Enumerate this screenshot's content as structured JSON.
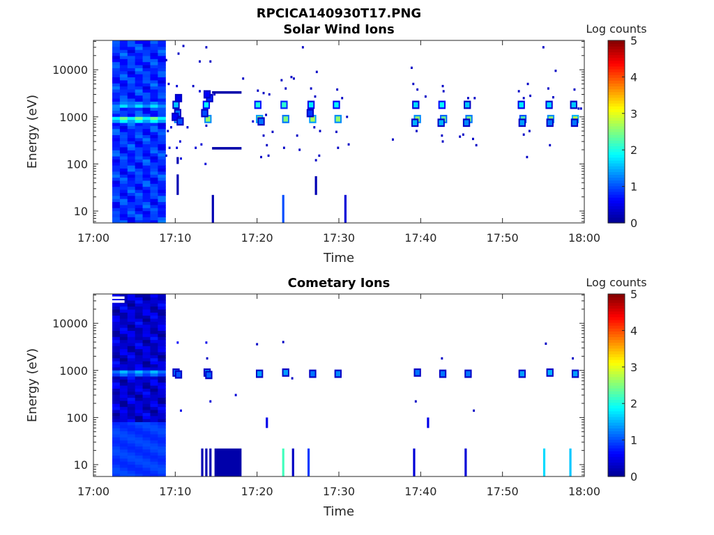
{
  "figure": {
    "title": "RPCICA140930T17.PNG"
  },
  "colormap": {
    "name": "jet",
    "stops": [
      "#00008f",
      "#0000ff",
      "#00ffff",
      "#ffff00",
      "#ff0000",
      "#800000"
    ]
  },
  "chart_data": [
    {
      "type": "heatmap",
      "title": "Solar Wind Ions",
      "xlabel": "Time",
      "ylabel": "Energy (eV)",
      "x_ticks": [
        "17:00",
        "17:10",
        "17:20",
        "17:30",
        "17:40",
        "17:50",
        "18:00"
      ],
      "x_range_minutes": [
        0,
        60
      ],
      "y_scale": "log",
      "y_ticks": [
        "10",
        "100",
        "1000",
        "10000"
      ],
      "y_range_ev": [
        5.6,
        42000
      ],
      "colorbar": {
        "label": "Log counts",
        "ticks": [
          "0",
          "1",
          "2",
          "3",
          "4",
          "5"
        ],
        "range": [
          0,
          5
        ]
      },
      "background_block": {
        "t_start": 2.3,
        "t_end": 8.8,
        "e_min": 5.6,
        "e_max": 42000,
        "base": 0.85,
        "peaks": [
          {
            "e": 900,
            "v": 2.7
          },
          {
            "e": 1800,
            "v": 1.9
          }
        ]
      },
      "cells": [
        {
          "t": 10.1,
          "e": 1800,
          "v": 1.6
        },
        {
          "t": 10.3,
          "e": 900,
          "v": 2.5
        },
        {
          "t": 10.3,
          "e": 1200,
          "v": 1.2
        },
        {
          "t": 10.0,
          "e": 1000,
          "v": 0.6
        },
        {
          "t": 10.6,
          "e": 800,
          "v": 1.0
        },
        {
          "t": 10.4,
          "e": 2500,
          "v": 0.5
        },
        {
          "t": 13.8,
          "e": 1800,
          "v": 1.9
        },
        {
          "t": 14.0,
          "e": 900,
          "v": 2.6
        },
        {
          "t": 13.6,
          "e": 1200,
          "v": 1.0
        },
        {
          "t": 14.2,
          "e": 2500,
          "v": 0.8
        },
        {
          "t": 13.9,
          "e": 3000,
          "v": 0.6
        },
        {
          "t": 20.1,
          "e": 1800,
          "v": 2.0
        },
        {
          "t": 20.3,
          "e": 900,
          "v": 2.7
        },
        {
          "t": 20.5,
          "e": 800,
          "v": 1.2
        },
        {
          "t": 23.3,
          "e": 1800,
          "v": 2.1
        },
        {
          "t": 23.5,
          "e": 900,
          "v": 2.5
        },
        {
          "t": 26.6,
          "e": 1800,
          "v": 1.8
        },
        {
          "t": 26.8,
          "e": 900,
          "v": 2.7
        },
        {
          "t": 26.5,
          "e": 1200,
          "v": 0.9
        },
        {
          "t": 29.7,
          "e": 1800,
          "v": 1.9
        },
        {
          "t": 29.9,
          "e": 900,
          "v": 2.6
        },
        {
          "t": 39.4,
          "e": 1800,
          "v": 1.7
        },
        {
          "t": 39.6,
          "e": 900,
          "v": 2.6
        },
        {
          "t": 39.3,
          "e": 750,
          "v": 1.5
        },
        {
          "t": 42.6,
          "e": 1800,
          "v": 1.9
        },
        {
          "t": 42.8,
          "e": 900,
          "v": 2.4
        },
        {
          "t": 42.5,
          "e": 750,
          "v": 1.5
        },
        {
          "t": 45.7,
          "e": 1800,
          "v": 1.6
        },
        {
          "t": 45.9,
          "e": 900,
          "v": 2.5
        },
        {
          "t": 45.6,
          "e": 750,
          "v": 1.3
        },
        {
          "t": 52.3,
          "e": 1800,
          "v": 1.8
        },
        {
          "t": 52.5,
          "e": 900,
          "v": 2.3
        },
        {
          "t": 52.4,
          "e": 750,
          "v": 1.4
        },
        {
          "t": 55.7,
          "e": 1800,
          "v": 1.7
        },
        {
          "t": 55.9,
          "e": 900,
          "v": 2.6
        },
        {
          "t": 55.8,
          "e": 750,
          "v": 1.2
        },
        {
          "t": 58.7,
          "e": 1800,
          "v": 1.6
        },
        {
          "t": 58.9,
          "e": 900,
          "v": 2.8
        },
        {
          "t": 58.8,
          "e": 750,
          "v": 1.2
        }
      ],
      "specks": [
        {
          "t": 11.0,
          "e": 32000,
          "v": 0.3
        },
        {
          "t": 13.8,
          "e": 30000,
          "v": 0.3
        },
        {
          "t": 10.4,
          "e": 22000,
          "v": 0.3
        },
        {
          "t": 8.9,
          "e": 16000,
          "v": 0.3
        },
        {
          "t": 13.0,
          "e": 15000,
          "v": 0.3
        },
        {
          "t": 14.3,
          "e": 15000,
          "v": 0.3
        },
        {
          "t": 9.2,
          "e": 5000,
          "v": 0.4
        },
        {
          "t": 10.2,
          "e": 4500,
          "v": 0.4
        },
        {
          "t": 12.2,
          "e": 4500,
          "v": 0.3
        },
        {
          "t": 13.0,
          "e": 3500,
          "v": 0.4
        },
        {
          "t": 14.8,
          "e": 3000,
          "v": 0.3
        },
        {
          "t": 9.5,
          "e": 600,
          "v": 0.4
        },
        {
          "t": 11.5,
          "e": 600,
          "v": 0.4
        },
        {
          "t": 13.8,
          "e": 650,
          "v": 0.3
        },
        {
          "t": 9.1,
          "e": 500,
          "v": 0.3
        },
        {
          "t": 10.6,
          "e": 300,
          "v": 0.4
        },
        {
          "t": 13.2,
          "e": 260,
          "v": 0.4
        },
        {
          "t": 9.3,
          "e": 220,
          "v": 0.4
        },
        {
          "t": 10.2,
          "e": 220,
          "v": 0.4
        },
        {
          "t": 12.5,
          "e": 220,
          "v": 0.4
        },
        {
          "t": 8.9,
          "e": 150,
          "v": 0.4
        },
        {
          "t": 10.7,
          "e": 130,
          "v": 0.4
        },
        {
          "t": 13.7,
          "e": 100,
          "v": 0.4
        },
        {
          "t": 18.3,
          "e": 6500,
          "v": 0.3
        },
        {
          "t": 20.1,
          "e": 3600,
          "v": 0.3
        },
        {
          "t": 20.8,
          "e": 3200,
          "v": 0.3
        },
        {
          "t": 21.5,
          "e": 3000,
          "v": 0.3
        },
        {
          "t": 19.5,
          "e": 800,
          "v": 0.4
        },
        {
          "t": 21.1,
          "e": 1100,
          "v": 0.3
        },
        {
          "t": 21.9,
          "e": 480,
          "v": 0.3
        },
        {
          "t": 20.8,
          "e": 400,
          "v": 0.3
        },
        {
          "t": 21.2,
          "e": 250,
          "v": 0.3
        },
        {
          "t": 20.5,
          "e": 140,
          "v": 0.3
        },
        {
          "t": 21.4,
          "e": 150,
          "v": 0.3
        },
        {
          "t": 23.0,
          "e": 6000,
          "v": 0.3
        },
        {
          "t": 23.5,
          "e": 4000,
          "v": 0.3
        },
        {
          "t": 24.2,
          "e": 7000,
          "v": 0.3
        },
        {
          "t": 24.5,
          "e": 6500,
          "v": 0.3
        },
        {
          "t": 23.3,
          "e": 220,
          "v": 0.3
        },
        {
          "t": 24.9,
          "e": 400,
          "v": 0.3
        },
        {
          "t": 25.2,
          "e": 200,
          "v": 0.3
        },
        {
          "t": 25.6,
          "e": 30000,
          "v": 0.3
        },
        {
          "t": 26.6,
          "e": 4000,
          "v": 0.3
        },
        {
          "t": 27.1,
          "e": 2700,
          "v": 0.3
        },
        {
          "t": 27.3,
          "e": 9000,
          "v": 0.3
        },
        {
          "t": 27.0,
          "e": 600,
          "v": 0.3
        },
        {
          "t": 27.7,
          "e": 500,
          "v": 0.3
        },
        {
          "t": 27.2,
          "e": 120,
          "v": 0.3
        },
        {
          "t": 27.6,
          "e": 150,
          "v": 0.3
        },
        {
          "t": 29.8,
          "e": 3800,
          "v": 0.3
        },
        {
          "t": 30.4,
          "e": 2500,
          "v": 0.3
        },
        {
          "t": 29.7,
          "e": 480,
          "v": 0.3
        },
        {
          "t": 29.9,
          "e": 220,
          "v": 0.3
        },
        {
          "t": 31.0,
          "e": 1000,
          "v": 0.3
        },
        {
          "t": 31.2,
          "e": 260,
          "v": 0.3
        },
        {
          "t": 38.9,
          "e": 11000,
          "v": 0.3
        },
        {
          "t": 39.1,
          "e": 5000,
          "v": 0.3
        },
        {
          "t": 39.6,
          "e": 3800,
          "v": 0.3
        },
        {
          "t": 40.6,
          "e": 2700,
          "v": 0.3
        },
        {
          "t": 39.5,
          "e": 500,
          "v": 0.3
        },
        {
          "t": 42.7,
          "e": 4500,
          "v": 0.3
        },
        {
          "t": 42.8,
          "e": 3500,
          "v": 0.3
        },
        {
          "t": 42.6,
          "e": 400,
          "v": 0.3
        },
        {
          "t": 42.7,
          "e": 300,
          "v": 0.3
        },
        {
          "t": 45.8,
          "e": 2500,
          "v": 0.3
        },
        {
          "t": 46.6,
          "e": 2500,
          "v": 0.3
        },
        {
          "t": 45.2,
          "e": 420,
          "v": 0.3
        },
        {
          "t": 44.8,
          "e": 380,
          "v": 0.3
        },
        {
          "t": 46.4,
          "e": 340,
          "v": 0.3
        },
        {
          "t": 46.8,
          "e": 250,
          "v": 0.3
        },
        {
          "t": 52.0,
          "e": 3500,
          "v": 0.3
        },
        {
          "t": 52.6,
          "e": 2500,
          "v": 0.3
        },
        {
          "t": 53.4,
          "e": 2800,
          "v": 0.3
        },
        {
          "t": 53.1,
          "e": 5000,
          "v": 0.3
        },
        {
          "t": 52.6,
          "e": 420,
          "v": 0.3
        },
        {
          "t": 53.3,
          "e": 500,
          "v": 0.3
        },
        {
          "t": 53.0,
          "e": 140,
          "v": 0.3
        },
        {
          "t": 55.0,
          "e": 30000,
          "v": 0.3
        },
        {
          "t": 55.6,
          "e": 4000,
          "v": 0.3
        },
        {
          "t": 56.2,
          "e": 2600,
          "v": 0.3
        },
        {
          "t": 56.5,
          "e": 9500,
          "v": 0.3
        },
        {
          "t": 55.8,
          "e": 250,
          "v": 0.3
        },
        {
          "t": 58.8,
          "e": 3800,
          "v": 0.3
        },
        {
          "t": 59.6,
          "e": 1500,
          "v": 0.3
        },
        {
          "t": 59.3,
          "e": 1500,
          "v": 0.3
        },
        {
          "t": 36.6,
          "e": 330,
          "v": 0.3
        }
      ],
      "hbars": [
        {
          "t_start": 14.5,
          "t_end": 18.1,
          "e": 3300,
          "v": 0.15
        },
        {
          "t_start": 14.5,
          "t_end": 18.1,
          "e": 215,
          "v": 0.15
        }
      ],
      "vbars": [
        {
          "t": 10.3,
          "e_min": 22,
          "e_max": 60,
          "v": 0.2
        },
        {
          "t": 10.3,
          "e_min": 100,
          "e_max": 140,
          "v": 0.2
        },
        {
          "t": 14.6,
          "e_min": 5.6,
          "e_max": 22,
          "v": 0.2
        },
        {
          "t": 23.2,
          "e_min": 5.6,
          "e_max": 22,
          "v": 1.0
        },
        {
          "t": 27.2,
          "e_min": 22,
          "e_max": 55,
          "v": 0.2
        },
        {
          "t": 30.8,
          "e_min": 5.6,
          "e_max": 22,
          "v": 0.4
        }
      ]
    },
    {
      "type": "heatmap",
      "title": "Cometary Ions",
      "xlabel": "Time",
      "ylabel": "Energy (eV)",
      "x_ticks": [
        "17:00",
        "17:10",
        "17:20",
        "17:30",
        "17:40",
        "17:50",
        "18:00"
      ],
      "x_range_minutes": [
        0,
        60
      ],
      "y_scale": "log",
      "y_ticks": [
        "10",
        "100",
        "1000",
        "10000"
      ],
      "y_range_ev": [
        5.6,
        42000
      ],
      "colorbar": {
        "label": "Log counts",
        "ticks": [
          "0",
          "1",
          "2",
          "3",
          "4",
          "5"
        ],
        "range": [
          0,
          5
        ]
      },
      "background_block": {
        "t_start": 2.3,
        "t_end": 8.8,
        "e_min": 5.6,
        "e_max": 42000,
        "base": 0.35,
        "low_band": {
          "e_min": 5.6,
          "e_max": 80,
          "v": 0.9
        },
        "peaks": [
          {
            "e": 900,
            "v": 1.7
          }
        ]
      },
      "cells": [
        {
          "t": 10.1,
          "e": 900,
          "v": 1.2
        },
        {
          "t": 10.4,
          "e": 820,
          "v": 1.0
        },
        {
          "t": 13.9,
          "e": 900,
          "v": 1.4
        },
        {
          "t": 14.1,
          "e": 800,
          "v": 1.1
        },
        {
          "t": 20.3,
          "e": 850,
          "v": 1.4
        },
        {
          "t": 23.5,
          "e": 900,
          "v": 1.4
        },
        {
          "t": 26.8,
          "e": 850,
          "v": 1.2
        },
        {
          "t": 29.9,
          "e": 850,
          "v": 1.3
        },
        {
          "t": 39.6,
          "e": 900,
          "v": 1.2
        },
        {
          "t": 42.7,
          "e": 850,
          "v": 1.2
        },
        {
          "t": 45.8,
          "e": 850,
          "v": 1.2
        },
        {
          "t": 52.4,
          "e": 850,
          "v": 1.4
        },
        {
          "t": 55.8,
          "e": 900,
          "v": 1.5
        },
        {
          "t": 58.9,
          "e": 850,
          "v": 1.4
        }
      ],
      "specks": [
        {
          "t": 10.3,
          "e": 3900,
          "v": 0.6
        },
        {
          "t": 13.8,
          "e": 3900,
          "v": 0.5
        },
        {
          "t": 13.9,
          "e": 1800,
          "v": 0.3
        },
        {
          "t": 14.3,
          "e": 220,
          "v": 0.4
        },
        {
          "t": 10.7,
          "e": 140,
          "v": 0.5
        },
        {
          "t": 17.4,
          "e": 300,
          "v": 0.4
        },
        {
          "t": 20.0,
          "e": 3600,
          "v": 0.3
        },
        {
          "t": 23.2,
          "e": 4000,
          "v": 0.3
        },
        {
          "t": 24.3,
          "e": 680,
          "v": 0.3
        },
        {
          "t": 42.6,
          "e": 1800,
          "v": 0.3
        },
        {
          "t": 39.4,
          "e": 220,
          "v": 0.3
        },
        {
          "t": 46.5,
          "e": 140,
          "v": 0.3
        },
        {
          "t": 55.3,
          "e": 3700,
          "v": 0.3
        },
        {
          "t": 58.6,
          "e": 1800,
          "v": 0.3
        },
        {
          "t": 52.6,
          "e": 800,
          "v": 0.3
        }
      ],
      "hbars": [
        {
          "t_start": 2.3,
          "t_end": 3.8,
          "e": 35000,
          "v": 5.5,
          "color": "#ffffff"
        },
        {
          "t_start": 2.3,
          "t_end": 3.8,
          "e": 29000,
          "v": 5.5,
          "color": "#ffffff"
        }
      ],
      "vbars": [
        {
          "t": 21.2,
          "e_min": 60,
          "e_max": 100,
          "v": 0.5
        },
        {
          "t": 40.9,
          "e_min": 60,
          "e_max": 100,
          "v": 0.5
        },
        {
          "t": 13.3,
          "e_min": 5.6,
          "e_max": 22,
          "v": 0.2
        },
        {
          "t": 13.8,
          "e_min": 5.6,
          "e_max": 22,
          "v": 0.2
        },
        {
          "t": 14.3,
          "e_min": 5.6,
          "e_max": 22,
          "v": 0.2
        },
        {
          "t": 23.2,
          "e_min": 5.6,
          "e_max": 22,
          "v": 2.2
        },
        {
          "t": 24.4,
          "e_min": 5.6,
          "e_max": 22,
          "v": 0.3
        },
        {
          "t": 26.3,
          "e_min": 5.6,
          "e_max": 22,
          "v": 0.9
        },
        {
          "t": 39.2,
          "e_min": 5.6,
          "e_max": 22,
          "v": 0.4
        },
        {
          "t": 45.5,
          "e_min": 5.6,
          "e_max": 22,
          "v": 0.4
        },
        {
          "t": 55.1,
          "e_min": 5.6,
          "e_max": 22,
          "v": 1.7
        },
        {
          "t": 58.3,
          "e_min": 5.6,
          "e_max": 22,
          "v": 1.6
        }
      ],
      "blocks": [
        {
          "t_start": 14.8,
          "t_end": 18.1,
          "e_min": 5.6,
          "e_max": 22,
          "v": 0.15
        }
      ]
    }
  ]
}
